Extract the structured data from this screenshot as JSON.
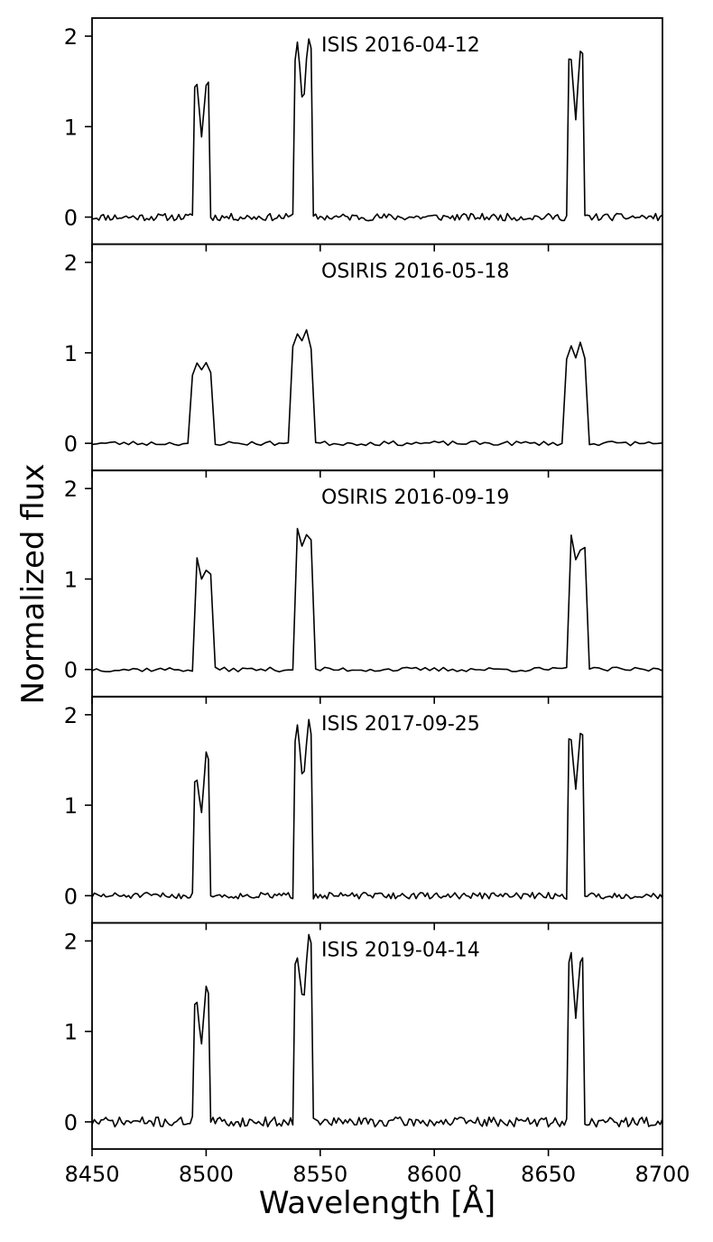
{
  "chart_data": {
    "type": "line",
    "ylabel": "Normalized flux",
    "xlabel": "Wavelength [Å]",
    "xlim": [
      8450,
      8700
    ],
    "ylim": [
      -0.3,
      2.2
    ],
    "x_ticks": [
      8450,
      8500,
      8550,
      8600,
      8650,
      8700
    ],
    "x_tick_labels": [
      "8450",
      "8500",
      "8550",
      "8600",
      "8650",
      "8700"
    ],
    "y_ticks": [
      0,
      1,
      2
    ],
    "y_tick_labels": [
      "0",
      "1",
      "2"
    ],
    "grid": false,
    "line_color": "#000000",
    "panels": [
      {
        "label": "ISIS 2016-04-12",
        "lines": [
          {
            "x1": 8494,
            "x2": 8502,
            "peaks": [
              1.47,
              1.48
            ],
            "valley": 0.88
          },
          {
            "x1": 8538,
            "x2": 8547,
            "peaks": [
              1.92,
              1.97
            ],
            "valley": 1.2
          },
          {
            "x1": 8658,
            "x2": 8666,
            "peaks": [
              1.74,
              1.82
            ],
            "valley": 1.05
          }
        ],
        "noise": 0.04,
        "seed": 11,
        "dx": 1
      },
      {
        "label": "OSIRIS 2016-05-18",
        "lines": [
          {
            "x1": 8493,
            "x2": 8503,
            "peaks": [
              0.88,
              0.92
            ],
            "valley": 0.8
          },
          {
            "x1": 8537,
            "x2": 8547,
            "peaks": [
              1.25,
              1.28
            ],
            "valley": 1.15
          },
          {
            "x1": 8657,
            "x2": 8667,
            "peaks": [
              1.1,
              1.15
            ],
            "valley": 0.95
          }
        ],
        "noise": 0.025,
        "seed": 23,
        "dx": 2
      },
      {
        "label": "OSIRIS 2016-09-19",
        "lines": [
          {
            "x1": 8494,
            "x2": 8503,
            "peaks": [
              1.21,
              1.16
            ],
            "valley": 0.95
          },
          {
            "x1": 8538,
            "x2": 8547,
            "peaks": [
              1.58,
              1.56
            ],
            "valley": 1.28
          },
          {
            "x1": 8658,
            "x2": 8667,
            "peaks": [
              1.5,
              1.47
            ],
            "valley": 1.1
          }
        ],
        "noise": 0.025,
        "seed": 37,
        "dx": 2
      },
      {
        "label": "ISIS 2017-09-25",
        "lines": [
          {
            "x1": 8494,
            "x2": 8502,
            "peaks": [
              1.29,
              1.55
            ],
            "valley": 0.92
          },
          {
            "x1": 8538,
            "x2": 8547,
            "peaks": [
              1.88,
              1.96
            ],
            "valley": 1.24
          },
          {
            "x1": 8658,
            "x2": 8666,
            "peaks": [
              1.7,
              1.82
            ],
            "valley": 1.16
          }
        ],
        "noise": 0.035,
        "seed": 51,
        "dx": 1
      },
      {
        "label": "ISIS 2019-04-14",
        "lines": [
          {
            "x1": 8494,
            "x2": 8502,
            "peaks": [
              1.35,
              1.46
            ],
            "valley": 0.87
          },
          {
            "x1": 8538,
            "x2": 8547,
            "peaks": [
              1.87,
              2.1
            ],
            "valley": 1.27
          },
          {
            "x1": 8658,
            "x2": 8666,
            "peaks": [
              1.82,
              1.77
            ],
            "valley": 1.12
          }
        ],
        "noise": 0.055,
        "seed": 71,
        "dx": 1
      }
    ]
  }
}
